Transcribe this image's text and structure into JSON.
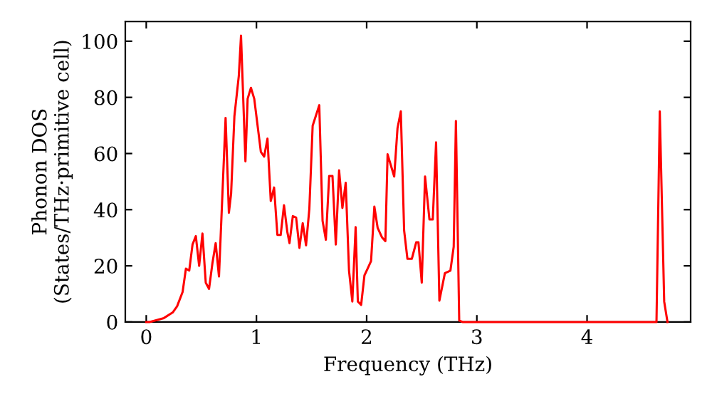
{
  "chart_data": {
    "type": "line",
    "xlabel": "Frequency (THz)",
    "ylabel": "Phonon DOS\n(States/THz·primitive cell)",
    "x": [
      0,
      0.03,
      0.16,
      0.24,
      0.28,
      0.33,
      0.36,
      0.39,
      0.42,
      0.45,
      0.48,
      0.51,
      0.54,
      0.57,
      0.6,
      0.63,
      0.66,
      0.72,
      0.75,
      0.77,
      0.8,
      0.84,
      0.86,
      0.9,
      0.92,
      0.95,
      0.98,
      1.04,
      1.07,
      1.1,
      1.13,
      1.16,
      1.19,
      1.22,
      1.25,
      1.28,
      1.3,
      1.33,
      1.36,
      1.39,
      1.42,
      1.45,
      1.48,
      1.51,
      1.57,
      1.6,
      1.63,
      1.66,
      1.69,
      1.72,
      1.75,
      1.78,
      1.81,
      1.84,
      1.87,
      1.9,
      1.92,
      1.95,
      1.98,
      2.01,
      2.04,
      2.07,
      2.1,
      2.14,
      2.17,
      2.19,
      2.25,
      2.28,
      2.31,
      2.34,
      2.37,
      2.41,
      2.45,
      2.47,
      2.5,
      2.53,
      2.57,
      2.6,
      2.63,
      2.66,
      2.71,
      2.76,
      2.79,
      2.81,
      2.84,
      2.87,
      3.5,
      4.63,
      4.66,
      4.7,
      4.73
    ],
    "series": [
      {
        "color": "#ff0000",
        "values": [
          0,
          0,
          1.4,
          3.4,
          5.6,
          10.7,
          19,
          18.3,
          27.6,
          30.6,
          20,
          31.5,
          14,
          11.8,
          20.8,
          28.1,
          16.2,
          72.7,
          38.9,
          45.7,
          73.3,
          87.7,
          102,
          57.2,
          79.5,
          83.4,
          79.5,
          60.6,
          58.9,
          65.3,
          43.1,
          47.9,
          31,
          31,
          41.6,
          32.1,
          28.1,
          37.7,
          37.2,
          26.4,
          35.2,
          27.3,
          40.3,
          69.9,
          77.2,
          36,
          29.3,
          52,
          52,
          27.6,
          54,
          40.6,
          49.6,
          18.3,
          7.3,
          33.8,
          7.3,
          6.1,
          16.6,
          19.1,
          21.7,
          41.1,
          33.5,
          30.1,
          28.8,
          59.7,
          51.8,
          69,
          75,
          32.6,
          22.5,
          22.5,
          28.4,
          28.4,
          14,
          51.8,
          36.5,
          36.5,
          64,
          7.6,
          17.4,
          18.3,
          26.8,
          71.6,
          0.5,
          0,
          0,
          0,
          75,
          7.3,
          0
        ]
      }
    ],
    "xlim": [
      -0.19,
      4.94
    ],
    "ylim": [
      0,
      107
    ],
    "xticks": [
      0,
      1,
      2,
      3,
      4
    ],
    "yticks": [
      0,
      20,
      40,
      60,
      80,
      100
    ],
    "marker": "none",
    "line_style": "solid"
  }
}
